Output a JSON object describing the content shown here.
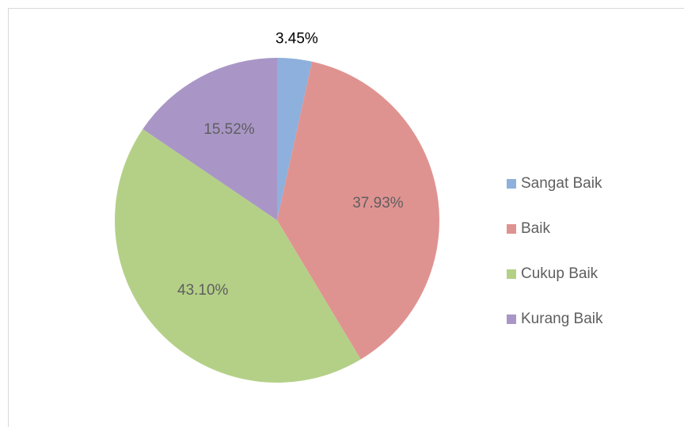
{
  "chart_data": {
    "type": "pie",
    "categories": [
      "Sangat Baik",
      "Baik",
      "Cukup Baik",
      "Kurang Baik"
    ],
    "values": [
      3.45,
      37.93,
      43.1,
      15.52
    ],
    "value_labels": [
      "3.45%",
      "37.93%",
      "43.10%",
      "15.52%"
    ],
    "colors": [
      "#8eb0dc",
      "#df9391",
      "#b4d087",
      "#a996c6"
    ],
    "legend": "right"
  }
}
